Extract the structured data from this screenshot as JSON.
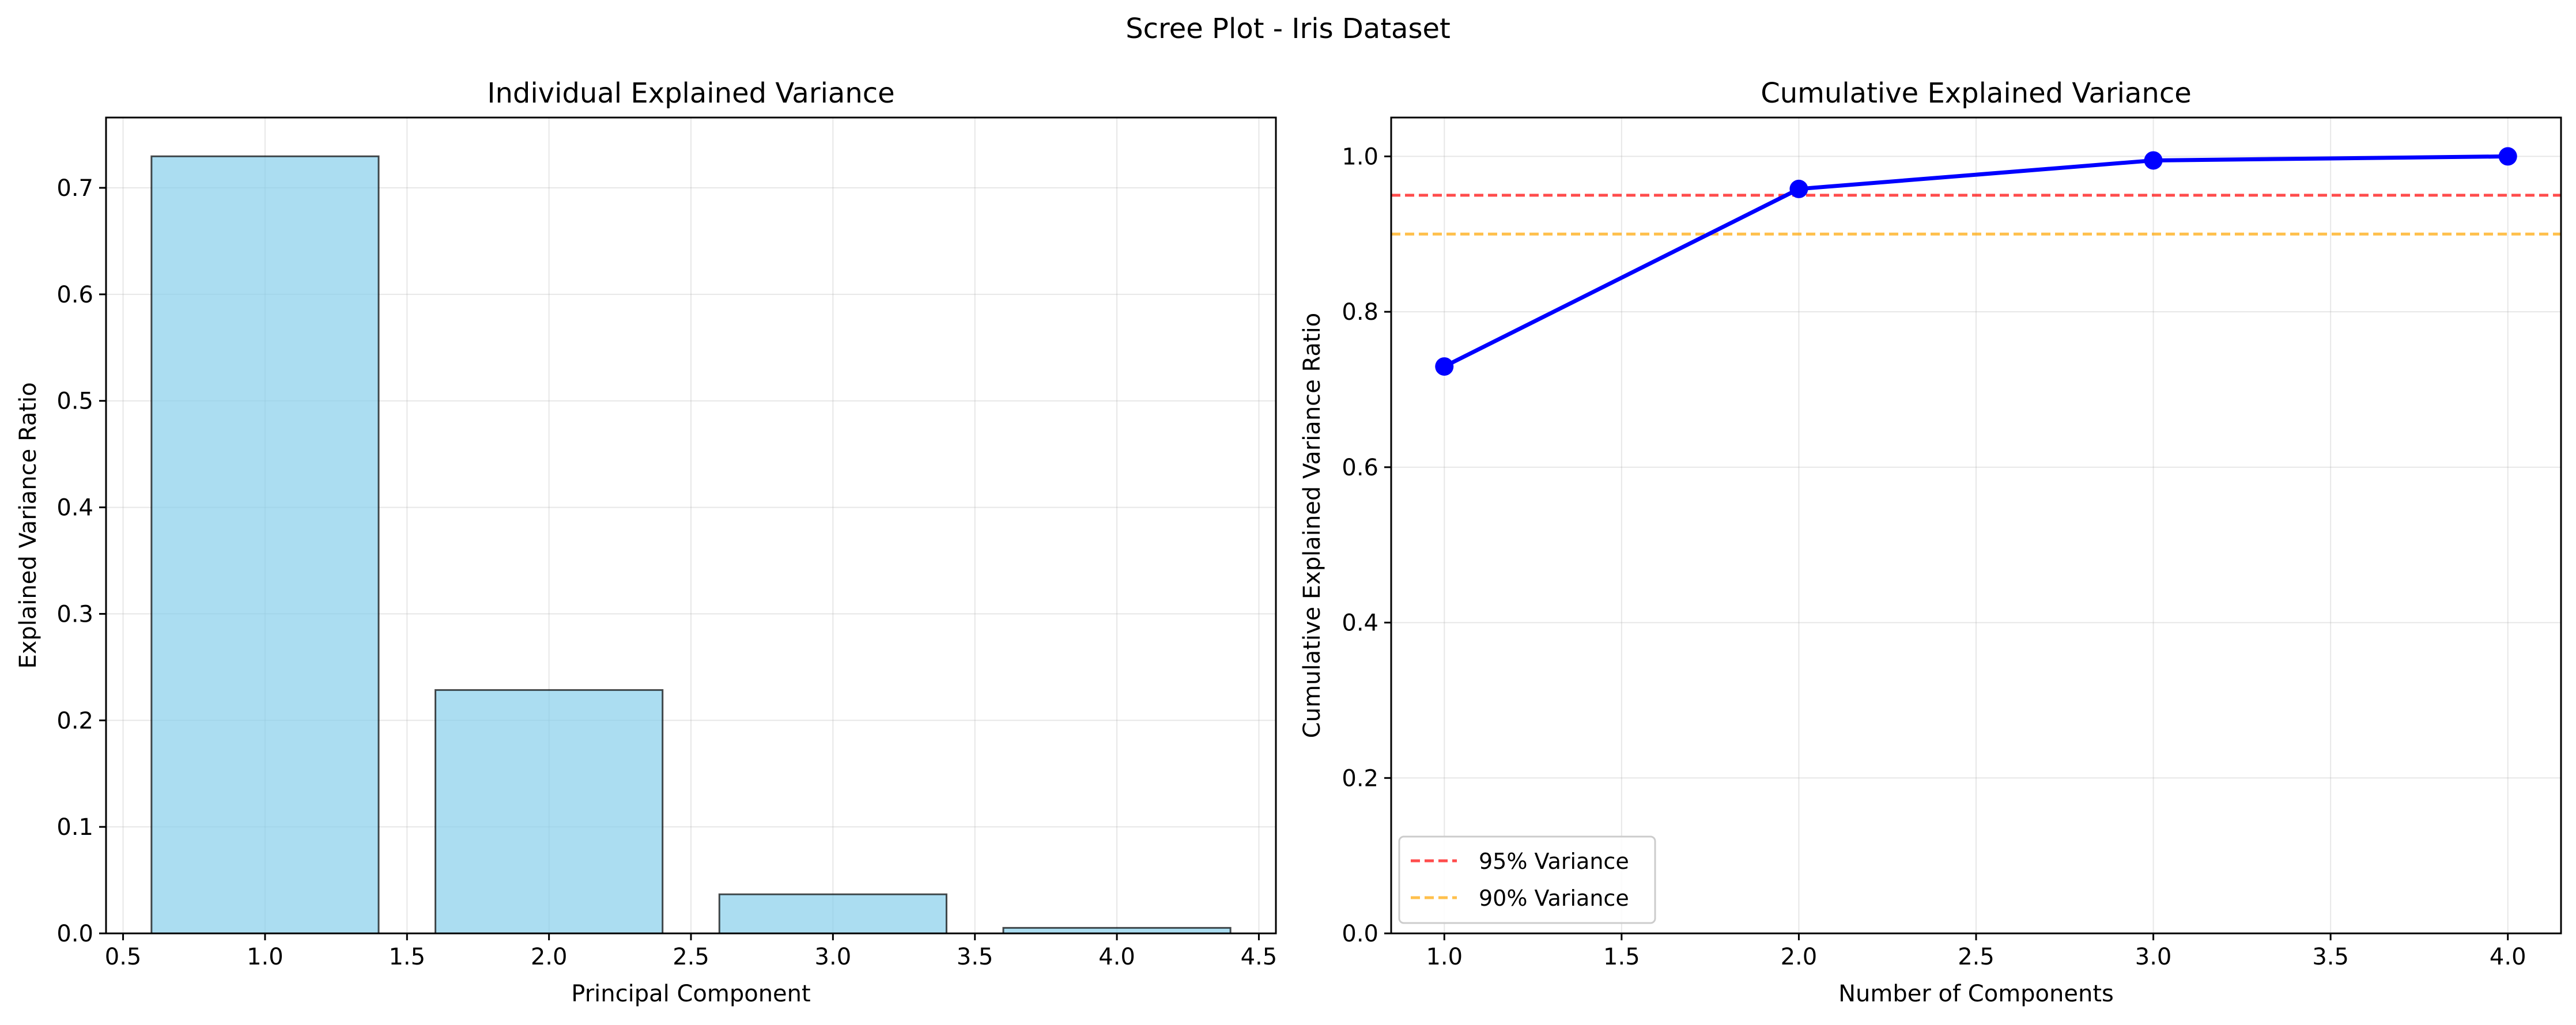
{
  "figure": {
    "suptitle": "Scree Plot - Iris Dataset"
  },
  "chart_data": [
    {
      "type": "bar",
      "title": "Individual Explained Variance",
      "xlabel": "Principal Component",
      "ylabel": "Explained Variance Ratio",
      "x": [
        1,
        2,
        3,
        4
      ],
      "values": [
        0.7296,
        0.2285,
        0.0367,
        0.0052
      ],
      "bar_width": 0.8,
      "xlim": [
        0.44,
        4.56
      ],
      "ylim": [
        0,
        0.766
      ],
      "xticks": [
        0.5,
        1.0,
        1.5,
        2.0,
        2.5,
        3.0,
        3.5,
        4.0,
        4.5
      ],
      "xtick_labels": [
        "0.5",
        "1.0",
        "1.5",
        "2.0",
        "2.5",
        "3.0",
        "3.5",
        "4.0",
        "4.5"
      ],
      "yticks": [
        0.0,
        0.1,
        0.2,
        0.3,
        0.4,
        0.5,
        0.6,
        0.7
      ],
      "ytick_labels": [
        "0.0",
        "0.1",
        "0.2",
        "0.3",
        "0.4",
        "0.5",
        "0.6",
        "0.7"
      ],
      "grid": true,
      "colors": {
        "bar_fill": "#87ceeb",
        "bar_edge": "#000000",
        "grid": "#b0b0b0"
      }
    },
    {
      "type": "line",
      "title": "Cumulative Explained Variance",
      "xlabel": "Number of Components",
      "ylabel": "Cumulative Explained Variance Ratio",
      "x": [
        1,
        2,
        3,
        4
      ],
      "series": [
        {
          "values": [
            0.7296,
            0.9581,
            0.9948,
            1.0
          ],
          "color": "#0000ff",
          "marker": "circle"
        }
      ],
      "hlines": [
        {
          "y": 0.95,
          "label": "95% Variance",
          "color": "#ff0000",
          "style": "dashed"
        },
        {
          "y": 0.9,
          "label": "90% Variance",
          "color": "#ffa500",
          "style": "dashed"
        }
      ],
      "xlim": [
        0.85,
        4.15
      ],
      "ylim": [
        0,
        1.05
      ],
      "xticks": [
        1.0,
        1.5,
        2.0,
        2.5,
        3.0,
        3.5,
        4.0
      ],
      "xtick_labels": [
        "1.0",
        "1.5",
        "2.0",
        "2.5",
        "3.0",
        "3.5",
        "4.0"
      ],
      "yticks": [
        0.0,
        0.2,
        0.4,
        0.6,
        0.8,
        1.0
      ],
      "ytick_labels": [
        "0.0",
        "0.2",
        "0.4",
        "0.6",
        "0.8",
        "1.0"
      ],
      "grid": true,
      "legend_position": "lower-left",
      "colors": {
        "grid": "#b0b0b0"
      }
    }
  ]
}
